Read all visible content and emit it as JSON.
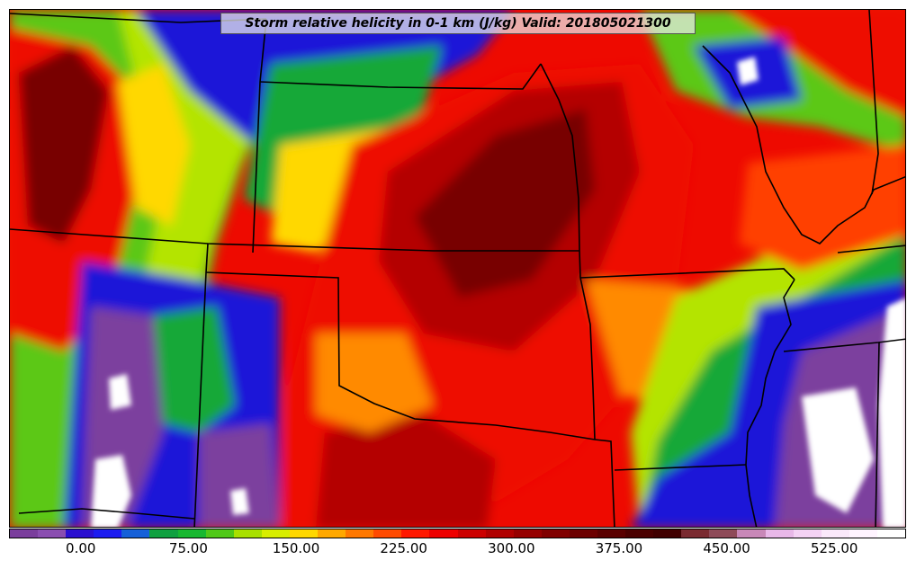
{
  "title": "Storm relative helicity in 0-1 km (J/kg) Valid: 201805021300",
  "colorbar": {
    "colors": [
      "#7a3e9c",
      "#8a4eb0",
      "#2a10d0",
      "#1c1cf0",
      "#1560d8",
      "#10a040",
      "#18b830",
      "#50c818",
      "#a8e000",
      "#d8ee00",
      "#ffd800",
      "#ffa800",
      "#ff7800",
      "#ff4a00",
      "#ff1800",
      "#ee0000",
      "#cc0000",
      "#b00000",
      "#960000",
      "#800000",
      "#6c0000",
      "#5a0000",
      "#4a0000",
      "#400000",
      "#7a2a30",
      "#8e4a58",
      "#c888b8",
      "#e8b8e8",
      "#f4d2f4",
      "#fae8fa",
      "#fff4ff",
      "#ffffff"
    ],
    "tick_labels": [
      "0.00",
      "75.00",
      "150.00",
      "225.00",
      "300.00",
      "375.00",
      "450.00",
      "525.00"
    ],
    "tick_values": [
      0,
      75,
      150,
      225,
      300,
      375,
      450,
      525
    ],
    "min": -50,
    "max": 575
  },
  "map": {
    "field_palette": {
      "purple": "#7b3f9e",
      "blue": "#1a14d8",
      "midblue": "#1f5fd0",
      "green": "#18a838",
      "lightgreen": "#5cc818",
      "yellowgreen": "#b4e400",
      "yellow": "#ffd800",
      "orange": "#ff8a00",
      "redorange": "#ff4000",
      "red": "#ee0a00",
      "darkred": "#b40000",
      "maroon": "#780000",
      "white": "#ffffff"
    },
    "boundary_color": "#000000"
  }
}
